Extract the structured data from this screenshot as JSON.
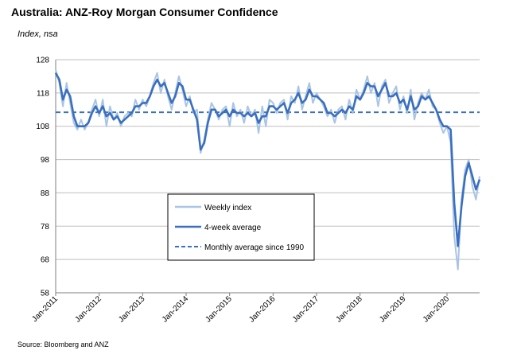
{
  "title": "Australia: ANZ-Roy Morgan Consumer Confidence",
  "subtitle": "Index, nsa",
  "source": "Source: Bloomberg and ANZ",
  "chart_data": {
    "type": "line",
    "ylim": [
      58,
      128
    ],
    "yticks": [
      58,
      68,
      78,
      88,
      98,
      108,
      118,
      128
    ],
    "xlim": [
      "2011-01",
      "2020-10"
    ],
    "xticks": [
      "Jan-2011",
      "Jan-2012",
      "Jan-2013",
      "Jan-2014",
      "Jan-2015",
      "Jan-2016",
      "Jan-2017",
      "Jan-2018",
      "Jan-2019",
      "Jan-2020"
    ],
    "grid": "horizontal",
    "legend_position": "center-left",
    "colors": {
      "weekly": "#a9c4e4",
      "average": "#3a6fbf",
      "reference": "#3a6fbf",
      "grid": "#bfbfbf",
      "axis": "#7f7f7f"
    },
    "reference_line": {
      "name": "Monthly average since 1990",
      "value": 112.2
    },
    "series": [
      {
        "name": "Weekly index",
        "x": [
          "2011-01",
          "2011-02",
          "2011-03",
          "2011-04",
          "2011-05",
          "2011-06",
          "2011-07",
          "2011-08",
          "2011-09",
          "2011-10",
          "2011-11",
          "2011-12",
          "2012-01",
          "2012-02",
          "2012-03",
          "2012-04",
          "2012-05",
          "2012-06",
          "2012-07",
          "2012-08",
          "2012-09",
          "2012-10",
          "2012-11",
          "2012-12",
          "2013-01",
          "2013-02",
          "2013-03",
          "2013-04",
          "2013-05",
          "2013-06",
          "2013-07",
          "2013-08",
          "2013-09",
          "2013-10",
          "2013-11",
          "2013-12",
          "2014-01",
          "2014-02",
          "2014-03",
          "2014-04",
          "2014-05",
          "2014-06",
          "2014-07",
          "2014-08",
          "2014-09",
          "2014-10",
          "2014-11",
          "2014-12",
          "2015-01",
          "2015-02",
          "2015-03",
          "2015-04",
          "2015-05",
          "2015-06",
          "2015-07",
          "2015-08",
          "2015-09",
          "2015-10",
          "2015-11",
          "2015-12",
          "2016-01",
          "2016-02",
          "2016-03",
          "2016-04",
          "2016-05",
          "2016-06",
          "2016-07",
          "2016-08",
          "2016-09",
          "2016-10",
          "2016-11",
          "2016-12",
          "2017-01",
          "2017-02",
          "2017-03",
          "2017-04",
          "2017-05",
          "2017-06",
          "2017-07",
          "2017-08",
          "2017-09",
          "2017-10",
          "2017-11",
          "2017-12",
          "2018-01",
          "2018-02",
          "2018-03",
          "2018-04",
          "2018-05",
          "2018-06",
          "2018-07",
          "2018-08",
          "2018-09",
          "2018-10",
          "2018-11",
          "2018-12",
          "2019-01",
          "2019-02",
          "2019-03",
          "2019-04",
          "2019-05",
          "2019-06",
          "2019-07",
          "2019-08",
          "2019-09",
          "2019-10",
          "2019-11",
          "2019-12",
          "2020-01",
          "2020-02",
          "2020-03",
          "2020-04",
          "2020-05",
          "2020-06",
          "2020-07",
          "2020-08",
          "2020-09",
          "2020-10"
        ],
        "values": [
          125,
          121,
          114,
          121,
          115,
          109,
          107,
          110,
          107,
          109,
          113,
          116,
          111,
          116,
          108,
          114,
          110,
          112,
          108,
          111,
          112,
          111,
          116,
          113,
          116,
          114,
          117,
          121,
          124,
          118,
          122,
          117,
          113,
          118,
          123,
          119,
          114,
          117,
          112,
          113,
          100,
          104,
          110,
          115,
          113,
          110,
          113,
          114,
          108,
          115,
          111,
          113,
          109,
          114,
          111,
          113,
          106,
          114,
          108,
          116,
          115,
          112,
          115,
          116,
          110,
          117,
          115,
          120,
          113,
          117,
          121,
          115,
          118,
          116,
          114,
          111,
          113,
          109,
          113,
          114,
          110,
          116,
          112,
          119,
          116,
          119,
          123,
          118,
          121,
          114,
          120,
          122,
          115,
          118,
          120,
          113,
          117,
          112,
          119,
          110,
          115,
          118,
          116,
          119,
          114,
          113,
          109,
          106,
          108,
          103,
          75,
          65,
          86,
          95,
          98,
          90,
          86,
          93
        ]
      },
      {
        "name": "4-week average",
        "x": [
          "2011-01",
          "2011-02",
          "2011-03",
          "2011-04",
          "2011-05",
          "2011-06",
          "2011-07",
          "2011-08",
          "2011-09",
          "2011-10",
          "2011-11",
          "2011-12",
          "2012-01",
          "2012-02",
          "2012-03",
          "2012-04",
          "2012-05",
          "2012-06",
          "2012-07",
          "2012-08",
          "2012-09",
          "2012-10",
          "2012-11",
          "2012-12",
          "2013-01",
          "2013-02",
          "2013-03",
          "2013-04",
          "2013-05",
          "2013-06",
          "2013-07",
          "2013-08",
          "2013-09",
          "2013-10",
          "2013-11",
          "2013-12",
          "2014-01",
          "2014-02",
          "2014-03",
          "2014-04",
          "2014-05",
          "2014-06",
          "2014-07",
          "2014-08",
          "2014-09",
          "2014-10",
          "2014-11",
          "2014-12",
          "2015-01",
          "2015-02",
          "2015-03",
          "2015-04",
          "2015-05",
          "2015-06",
          "2015-07",
          "2015-08",
          "2015-09",
          "2015-10",
          "2015-11",
          "2015-12",
          "2016-01",
          "2016-02",
          "2016-03",
          "2016-04",
          "2016-05",
          "2016-06",
          "2016-07",
          "2016-08",
          "2016-09",
          "2016-10",
          "2016-11",
          "2016-12",
          "2017-01",
          "2017-02",
          "2017-03",
          "2017-04",
          "2017-05",
          "2017-06",
          "2017-07",
          "2017-08",
          "2017-09",
          "2017-10",
          "2017-11",
          "2017-12",
          "2018-01",
          "2018-02",
          "2018-03",
          "2018-04",
          "2018-05",
          "2018-06",
          "2018-07",
          "2018-08",
          "2018-09",
          "2018-10",
          "2018-11",
          "2018-12",
          "2019-01",
          "2019-02",
          "2019-03",
          "2019-04",
          "2019-05",
          "2019-06",
          "2019-07",
          "2019-08",
          "2019-09",
          "2019-10",
          "2019-11",
          "2019-12",
          "2020-01",
          "2020-02",
          "2020-03",
          "2020-04",
          "2020-05",
          "2020-06",
          "2020-07",
          "2020-08",
          "2020-09",
          "2020-10"
        ],
        "values": [
          124,
          122,
          116,
          119,
          117,
          111,
          108,
          108,
          108,
          109,
          112,
          114,
          112,
          114,
          111,
          112,
          110,
          111,
          109,
          110,
          111,
          112,
          114,
          114,
          115,
          115,
          117,
          120,
          122,
          120,
          121,
          118,
          115,
          117,
          121,
          120,
          116,
          116,
          113,
          110,
          101,
          103,
          109,
          113,
          113,
          111,
          112,
          113,
          111,
          113,
          112,
          112,
          111,
          112,
          111,
          112,
          109,
          111,
          111,
          114,
          114,
          113,
          114,
          115,
          112,
          115,
          116,
          118,
          115,
          116,
          119,
          117,
          117,
          116,
          115,
          112,
          112,
          111,
          112,
          113,
          112,
          114,
          113,
          117,
          116,
          118,
          121,
          120,
          120,
          117,
          119,
          121,
          117,
          117,
          118,
          115,
          116,
          113,
          117,
          113,
          114,
          117,
          116,
          117,
          115,
          113,
          110,
          108,
          108,
          107,
          85,
          72,
          84,
          93,
          97,
          93,
          89,
          92
        ]
      }
    ]
  }
}
